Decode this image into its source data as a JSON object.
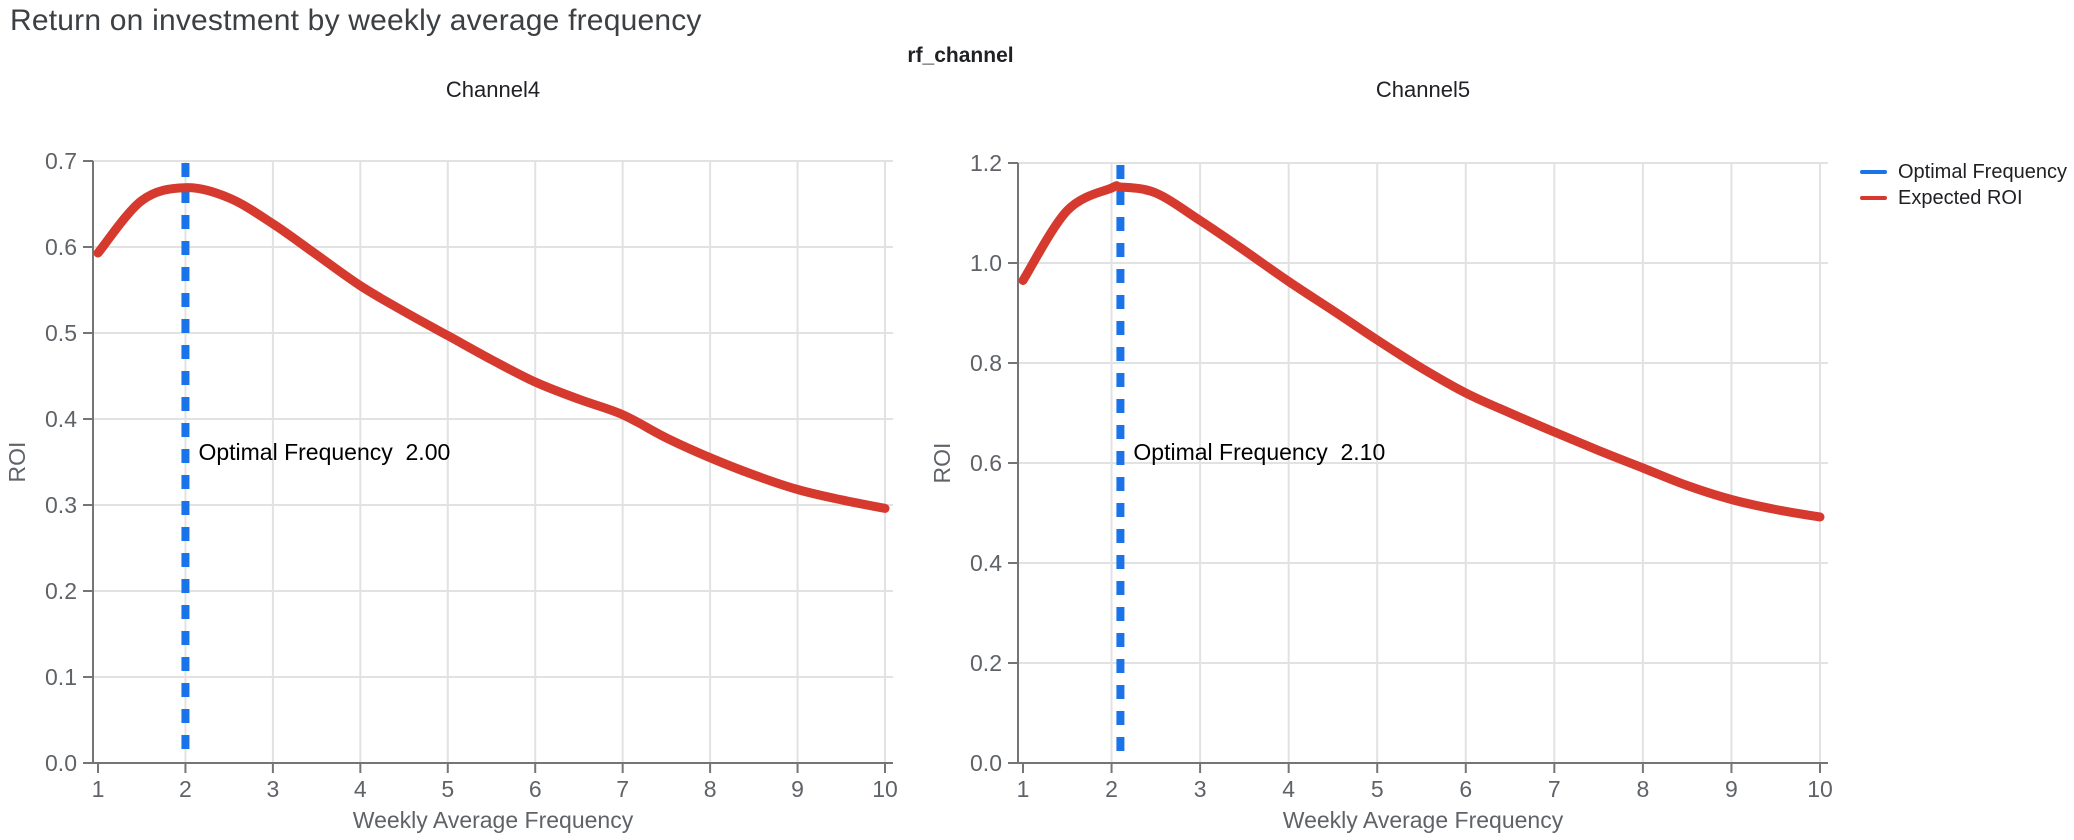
{
  "page": {
    "title": "Return on investment by weekly average frequency"
  },
  "figure": {
    "title": "rf_channel",
    "legend": [
      {
        "label": "Optimal Frequency",
        "color": "#1a73e8"
      },
      {
        "label": "Expected ROI",
        "color": "#d6392d"
      }
    ]
  },
  "colors": {
    "expected_roi": "#d6392d",
    "optimal_frequency": "#1a73e8",
    "grid": "#e2e2e2",
    "axis": "#757575",
    "tick_label": "#5f6368",
    "subplot_title": "#202124",
    "annotation": "#000000"
  },
  "chart_data": [
    {
      "type": "line",
      "title": "Channel4",
      "xlabel": "Weekly Average Frequency",
      "ylabel": "ROI",
      "xlim": [
        1,
        10
      ],
      "ylim": [
        0,
        0.7
      ],
      "x_ticks": [
        1,
        2,
        3,
        4,
        5,
        6,
        7,
        8,
        9,
        10
      ],
      "y_ticks": [
        0.0,
        0.1,
        0.2,
        0.3,
        0.4,
        0.5,
        0.6,
        0.7
      ],
      "y_tick_labels": [
        "0.0",
        "0.1",
        "0.2",
        "0.3",
        "0.4",
        "0.5",
        "0.6",
        "0.7"
      ],
      "grid": true,
      "legend_position": "right",
      "optimal_frequency": 2.0,
      "annotation": "Optimal Frequency  2.00",
      "series": [
        {
          "name": "Expected ROI",
          "style": "solid",
          "x": [
            1,
            1.5,
            2,
            2.5,
            3,
            3.5,
            4,
            4.5,
            5,
            5.5,
            6,
            6.5,
            7,
            7.5,
            8,
            8.5,
            9,
            9.5,
            10
          ],
          "y": [
            0.593,
            0.654,
            0.669,
            0.657,
            0.627,
            0.591,
            0.555,
            0.525,
            0.497,
            0.469,
            0.443,
            0.423,
            0.405,
            0.378,
            0.355,
            0.335,
            0.318,
            0.306,
            0.296
          ]
        },
        {
          "name": "Optimal Frequency",
          "style": "vertical-dashed",
          "x": 2.0
        }
      ]
    },
    {
      "type": "line",
      "title": "Channel5",
      "xlabel": "Weekly Average Frequency",
      "ylabel": "ROI",
      "xlim": [
        1,
        10
      ],
      "ylim": [
        0,
        1.2
      ],
      "x_ticks": [
        1,
        2,
        3,
        4,
        5,
        6,
        7,
        8,
        9,
        10
      ],
      "y_ticks": [
        0.0,
        0.2,
        0.4,
        0.6,
        0.8,
        1.0,
        1.2
      ],
      "y_tick_labels": [
        "0.0",
        "0.2",
        "0.4",
        "0.6",
        "0.8",
        "1.0",
        "1.2"
      ],
      "grid": true,
      "legend_position": "right",
      "optimal_frequency": 2.1,
      "annotation": "Optimal Frequency  2.10",
      "series": [
        {
          "name": "Expected ROI",
          "style": "solid",
          "x": [
            1,
            1.5,
            2,
            2.1,
            2.5,
            3,
            3.5,
            4,
            4.5,
            5,
            5.5,
            6,
            6.5,
            7,
            7.5,
            8,
            8.5,
            9,
            9.5,
            10
          ],
          "y": [
            0.965,
            1.105,
            1.15,
            1.152,
            1.14,
            1.085,
            1.025,
            0.963,
            0.905,
            0.846,
            0.79,
            0.74,
            0.7,
            0.662,
            0.625,
            0.59,
            0.555,
            0.527,
            0.507,
            0.492
          ]
        },
        {
          "name": "Optimal Frequency",
          "style": "vertical-dashed",
          "x": 2.1
        }
      ]
    }
  ]
}
